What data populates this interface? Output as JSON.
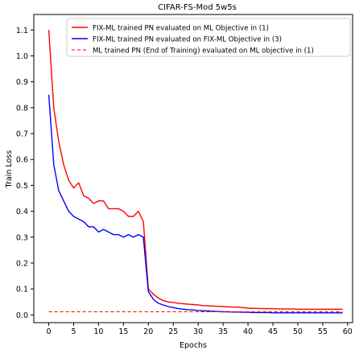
{
  "chart_data": {
    "type": "line",
    "title": "CIFAR-FS-Mod 5w5s",
    "xlabel": "Epochs",
    "ylabel": "Train Loss",
    "xlim": [
      -3,
      61
    ],
    "ylim": [
      -0.03,
      1.16
    ],
    "xticks": [
      0,
      5,
      10,
      15,
      20,
      25,
      30,
      35,
      40,
      45,
      50,
      55,
      60
    ],
    "yticks": [
      0.0,
      0.1,
      0.2,
      0.3,
      0.4,
      0.5,
      0.6,
      0.7,
      0.8,
      0.9,
      1.0,
      1.1
    ],
    "grid": false,
    "legend_position": "top-right",
    "series": [
      {
        "name": "FIX-ML trained PN evaluated on ML Objective in (1)",
        "color": "#ff0000",
        "style": "solid",
        "x": [
          0,
          1,
          2,
          3,
          4,
          5,
          6,
          7,
          8,
          9,
          10,
          11,
          12,
          13,
          14,
          15,
          16,
          17,
          18,
          19,
          20,
          21,
          22,
          23,
          24,
          25,
          26,
          27,
          28,
          29,
          30,
          31,
          32,
          33,
          34,
          35,
          36,
          37,
          38,
          39,
          40,
          41,
          42,
          43,
          44,
          45,
          46,
          47,
          48,
          49,
          50,
          51,
          52,
          53,
          54,
          55,
          56,
          57,
          58,
          59
        ],
        "y": [
          1.1,
          0.8,
          0.67,
          0.58,
          0.52,
          0.49,
          0.51,
          0.46,
          0.45,
          0.43,
          0.44,
          0.44,
          0.41,
          0.41,
          0.41,
          0.4,
          0.38,
          0.38,
          0.4,
          0.36,
          0.1,
          0.08,
          0.065,
          0.055,
          0.05,
          0.048,
          0.045,
          0.043,
          0.041,
          0.04,
          0.038,
          0.036,
          0.035,
          0.034,
          0.033,
          0.032,
          0.031,
          0.03,
          0.03,
          0.028,
          0.026,
          0.025,
          0.025,
          0.024,
          0.024,
          0.024,
          0.023,
          0.023,
          0.023,
          0.023,
          0.022,
          0.022,
          0.022,
          0.022,
          0.022,
          0.022,
          0.022,
          0.022,
          0.022,
          0.022
        ]
      },
      {
        "name": "FIX-ML trained PN evaluated on FIX-ML Objective in (3)",
        "color": "#0000ff",
        "style": "solid",
        "x": [
          0,
          1,
          2,
          3,
          4,
          5,
          6,
          7,
          8,
          9,
          10,
          11,
          12,
          13,
          14,
          15,
          16,
          17,
          18,
          19,
          20,
          21,
          22,
          23,
          24,
          25,
          26,
          27,
          28,
          29,
          30,
          31,
          32,
          33,
          34,
          35,
          36,
          37,
          38,
          39,
          40,
          41,
          42,
          43,
          44,
          45,
          46,
          47,
          48,
          49,
          50,
          51,
          52,
          53,
          54,
          55,
          56,
          57,
          58,
          59
        ],
        "y": [
          0.85,
          0.58,
          0.48,
          0.44,
          0.4,
          0.38,
          0.37,
          0.36,
          0.34,
          0.34,
          0.32,
          0.33,
          0.32,
          0.31,
          0.31,
          0.3,
          0.31,
          0.3,
          0.31,
          0.3,
          0.09,
          0.06,
          0.045,
          0.038,
          0.032,
          0.028,
          0.024,
          0.022,
          0.02,
          0.019,
          0.017,
          0.016,
          0.015,
          0.014,
          0.013,
          0.012,
          0.012,
          0.011,
          0.011,
          0.01,
          0.01,
          0.009,
          0.009,
          0.009,
          0.009,
          0.008,
          0.008,
          0.008,
          0.008,
          0.008,
          0.008,
          0.008,
          0.008,
          0.008,
          0.008,
          0.008,
          0.008,
          0.008,
          0.008,
          0.008
        ]
      },
      {
        "name": "ML trained PN (End of Training) evaluated on ML objective in (1)",
        "color": "#ff0000",
        "style": "dashed",
        "x": [
          0,
          59
        ],
        "y": [
          0.012,
          0.012
        ]
      }
    ]
  }
}
